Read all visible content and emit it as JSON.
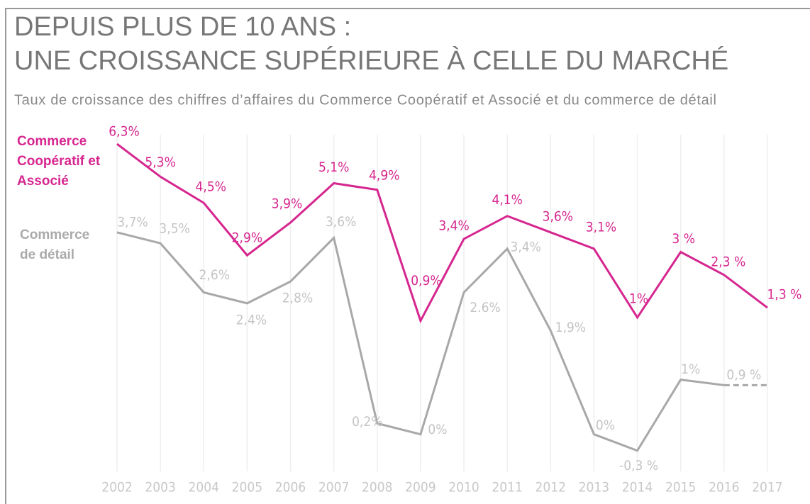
{
  "chart_data": {
    "type": "line",
    "title": [
      "DEPUIS PLUS DE 10 ANS :",
      "UNE CROISSANCE SUPÉRIEURE À CELLE DU MARCHÉ"
    ],
    "subtitle": "Taux de croissance des chiffres d’affaires du Commerce Coopératif et Associé et du commerce de détail",
    "categories": [
      "2002",
      "2003",
      "2004",
      "2005",
      "2006",
      "2007",
      "2008",
      "2009",
      "2010",
      "2011",
      "2012",
      "2013",
      "2014",
      "2015",
      "2016",
      "2017"
    ],
    "ylim": [
      -3.7,
      6.8
    ],
    "y2lim": [
      -0.68,
      5.62
    ],
    "grid": true,
    "series": [
      {
        "name": "Commerce Coopératif et Associé",
        "color": "#d6268f",
        "values": [
          6.3,
          5.3,
          4.5,
          2.9,
          3.9,
          5.1,
          4.9,
          0.9,
          3.4,
          4.1,
          3.6,
          3.1,
          1,
          3,
          2.3,
          1.3
        ],
        "value_labels": [
          "6,3%",
          "5,3%",
          "4,5%",
          "2,9%",
          "3,9%",
          "5,1%",
          "4,9%",
          "0,9%",
          "3,4%",
          "4,1%",
          "3,6%",
          "3,1%",
          "1%",
          "3 %",
          "2,3 %",
          "1,3 %"
        ]
      },
      {
        "name": "Commerce de détail",
        "color": "#a8a8a8",
        "axis": "y2",
        "values": [
          3.7,
          3.5,
          2.6,
          2.4,
          2.8,
          3.6,
          0.2,
          0,
          2.6,
          3.4,
          1.9,
          0,
          -0.3,
          1,
          0.9,
          0.9
        ],
        "value_labels": [
          "3,7%",
          "3,5%",
          "2,6%",
          "2,4%",
          "2,8%",
          "3,6%",
          "0,2%",
          "0%",
          "2.6%",
          "3,4%",
          "1,9%",
          "0%",
          "-0,3 %",
          "1%",
          "0,9 %",
          null
        ]
      }
    ]
  }
}
